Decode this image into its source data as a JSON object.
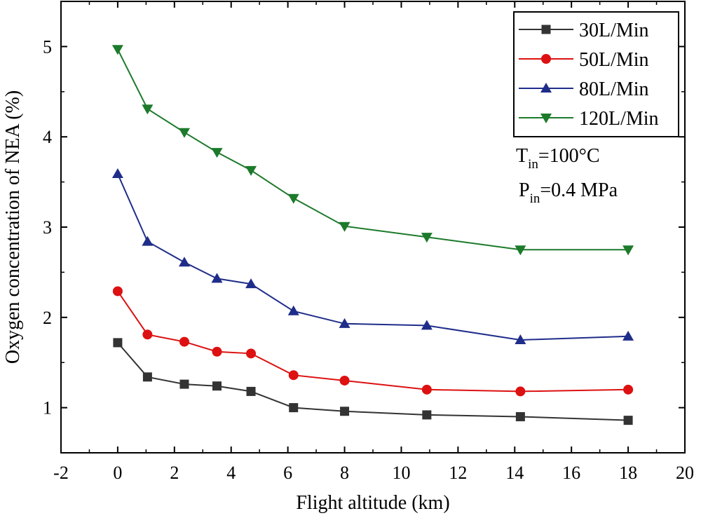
{
  "chart_data": {
    "type": "line",
    "title": "",
    "xlabel": "Flight altitude (km)",
    "ylabel": "Oxygen concentration of NEA (%)",
    "xlim": [
      -2,
      20
    ],
    "ylim": [
      0.5,
      5.5
    ],
    "xticks": [
      -2,
      0,
      2,
      4,
      6,
      8,
      10,
      12,
      14,
      16,
      18,
      20
    ],
    "xtick_labels": [
      "-2",
      "0",
      "2",
      "4",
      "6",
      "8",
      "10",
      "12",
      "14",
      "16",
      "18",
      "20"
    ],
    "yticks": [
      1,
      2,
      3,
      4,
      5
    ],
    "ytick_labels": [
      "1",
      "2",
      "3",
      "4",
      "5"
    ],
    "grid": false,
    "legend_position": "top-right",
    "x": [
      0,
      1.05,
      2.35,
      3.5,
      4.7,
      6.2,
      8.0,
      10.9,
      14.2,
      18.0
    ],
    "series": [
      {
        "name": "30L/Min",
        "color": "#333333",
        "marker": "square",
        "values": [
          1.72,
          1.34,
          1.26,
          1.24,
          1.18,
          1.0,
          0.96,
          0.92,
          0.9,
          0.86
        ]
      },
      {
        "name": "50L/Min",
        "color": "#dd1111",
        "marker": "circle",
        "values": [
          2.29,
          1.81,
          1.73,
          1.62,
          1.6,
          1.36,
          1.3,
          1.2,
          1.18,
          1.2
        ]
      },
      {
        "name": "80L/Min",
        "color": "#1f2d8a",
        "marker": "triangle-up",
        "values": [
          3.59,
          2.84,
          2.61,
          2.43,
          2.37,
          2.07,
          1.93,
          1.91,
          1.75,
          1.79
        ]
      },
      {
        "name": "120L/Min",
        "color": "#1c7a2b",
        "marker": "triangle-down",
        "values": [
          4.97,
          4.31,
          4.05,
          3.83,
          3.63,
          3.32,
          3.01,
          2.89,
          2.75,
          2.75
        ]
      }
    ],
    "annotations": [
      {
        "main": "T",
        "sub": "in",
        "rest": "=100°C"
      },
      {
        "main": "P",
        "sub": "in",
        "rest": "=0.4 MPa"
      }
    ]
  }
}
